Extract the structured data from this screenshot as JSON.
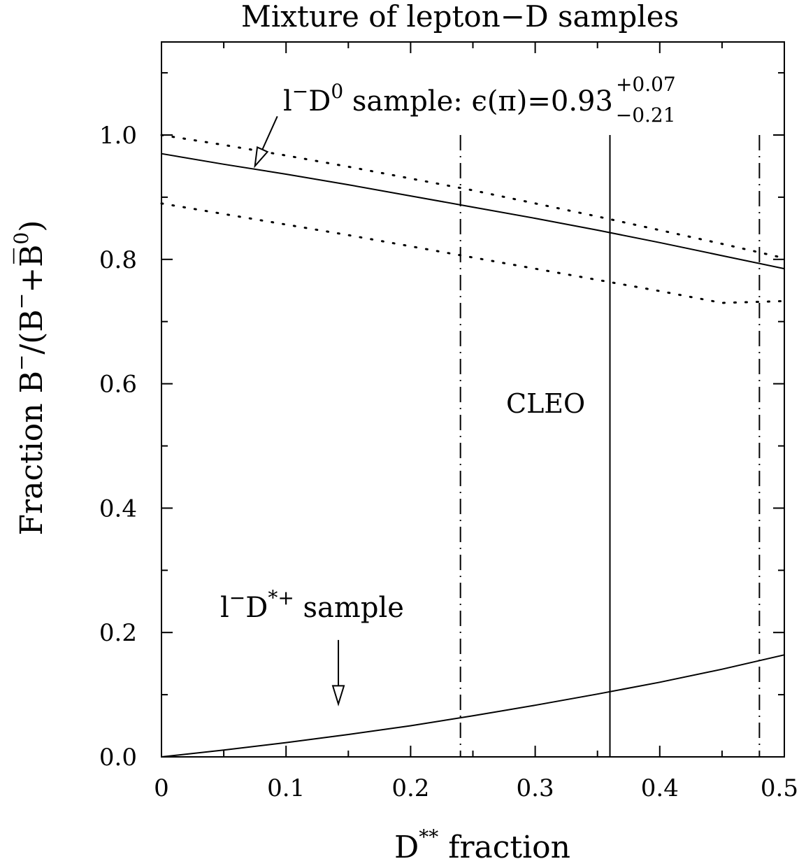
{
  "chart_data": {
    "type": "line",
    "title": "Mixture of lepton−D samples",
    "xlabel": {
      "main": "D",
      "sup": "**",
      "rest": " fraction"
    },
    "ylabel": {
      "p1": "Fraction B",
      "s1": "−",
      "p2": "/(B",
      "s2": "−",
      "p3": "+B̅",
      "s3": "0",
      "p4": ")"
    },
    "xlim": [
      0,
      0.5
    ],
    "ylim": [
      0,
      1.0
    ],
    "xticks": [
      "0",
      "0.1",
      "0.2",
      "0.3",
      "0.4",
      "0.5"
    ],
    "yticks": [
      "0.0",
      "0.2",
      "0.4",
      "0.6",
      "0.8",
      "1.0"
    ],
    "x_tick_values": [
      0,
      0.1,
      0.2,
      0.3,
      0.4,
      0.5
    ],
    "y_tick_values": [
      0,
      0.2,
      0.4,
      0.6,
      0.8,
      1.0
    ],
    "series": [
      {
        "style": "solid",
        "x": [
          0,
          0.05,
          0.1,
          0.15,
          0.2,
          0.25,
          0.3,
          0.35,
          0.4,
          0.45,
          0.5
        ],
        "values": [
          0.97,
          0.953,
          0.937,
          0.92,
          0.902,
          0.884,
          0.866,
          0.847,
          0.827,
          0.806,
          0.785
        ]
      },
      {
        "style": "dotted",
        "x": [
          0,
          0.05,
          0.1,
          0.15,
          0.2,
          0.25,
          0.3,
          0.35,
          0.4,
          0.45,
          0.5
        ],
        "values": [
          1.0,
          0.984,
          0.967,
          0.949,
          0.93,
          0.911,
          0.89,
          0.869,
          0.847,
          0.825,
          0.802
        ]
      },
      {
        "style": "dotted",
        "x": [
          0,
          0.05,
          0.1,
          0.15,
          0.2,
          0.25,
          0.3,
          0.35,
          0.4,
          0.45,
          0.5
        ],
        "values": [
          0.89,
          0.873,
          0.856,
          0.839,
          0.821,
          0.803,
          0.785,
          0.767,
          0.749,
          0.73,
          0.733
        ]
      },
      {
        "style": "solid",
        "x": [
          0,
          0.05,
          0.1,
          0.15,
          0.2,
          0.25,
          0.3,
          0.35,
          0.4,
          0.45,
          0.5
        ],
        "values": [
          0.0,
          0.011,
          0.023,
          0.036,
          0.05,
          0.066,
          0.083,
          0.101,
          0.12,
          0.141,
          0.164
        ]
      }
    ],
    "vertical_lines": [
      {
        "x": 0.24,
        "style": "dashdot",
        "ymax": 1.0
      },
      {
        "x": 0.36,
        "style": "solid",
        "ymax": 1.0
      },
      {
        "x": 0.48,
        "style": "dashdot",
        "ymax": 1.0
      }
    ],
    "annotations": {
      "d0": {
        "l": "l",
        "lsup": "−",
        "d": "D",
        "dsup": "0",
        "rest": " sample: ϵ(π)=0.93",
        "up": "+0.07",
        "down": "−0.21"
      },
      "dstar": {
        "l": "l",
        "lsup": "−",
        "d": "D",
        "dsup": "*+",
        "rest": " sample"
      },
      "cleo": "CLEO"
    },
    "arrows": [
      {
        "from": [
          0.093,
          1.03
        ],
        "to": [
          0.075,
          0.95
        ]
      },
      {
        "from": [
          0.142,
          0.188
        ],
        "to": [
          0.142,
          0.085
        ]
      }
    ],
    "grid": false,
    "legend": "none"
  }
}
